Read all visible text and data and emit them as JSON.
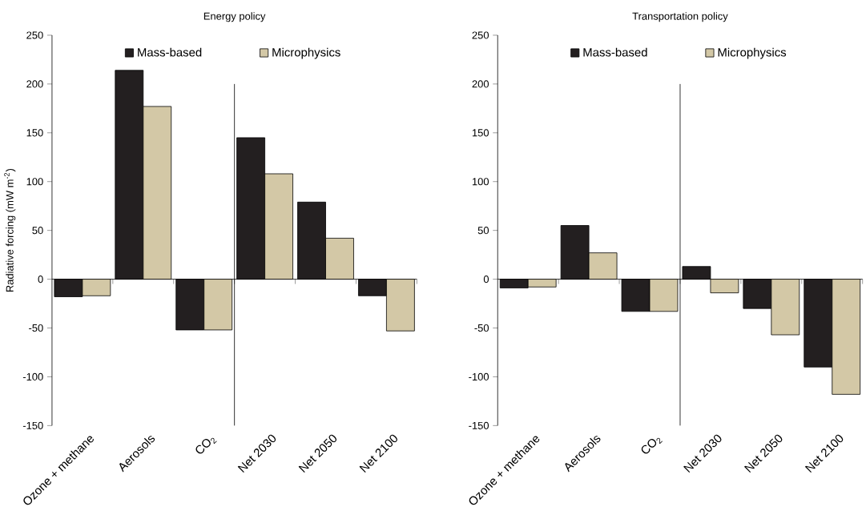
{
  "chart_data": [
    {
      "type": "bar",
      "title": "Energy policy",
      "ylabel": "Radiative forcing (mW m$^{-2}$)",
      "categories": [
        "Ozone + methane",
        "Aerosols",
        "CO$_{2}$",
        "Net 2030",
        "Net 2050",
        "Net 2100"
      ],
      "series": [
        {
          "name": "Mass-based",
          "color": "#231f20",
          "values": [
            -18,
            214,
            -52,
            145,
            79,
            -17
          ]
        },
        {
          "name": "Microphysics",
          "color": "#d3c8a6",
          "values": [
            -17,
            177,
            -52,
            108,
            42,
            -53
          ]
        }
      ],
      "ylim": [
        -150,
        250
      ],
      "yticks": [
        -150,
        -100,
        -50,
        0,
        50,
        100,
        150,
        200,
        250
      ],
      "legend": "top"
    },
    {
      "type": "bar",
      "title": "Transportation policy",
      "categories": [
        "Ozone + methane",
        "Aerosols",
        "CO$_{2}$",
        "Net 2030",
        "Net 2050",
        "Net 2100"
      ],
      "series": [
        {
          "name": "Mass-based",
          "color": "#231f20",
          "values": [
            -9,
            55,
            -33,
            13,
            -30,
            -90
          ]
        },
        {
          "name": "Microphysics",
          "color": "#d3c8a6",
          "values": [
            -8,
            27,
            -33,
            -14,
            -57,
            -118
          ]
        }
      ],
      "ylim": [
        -150,
        250
      ],
      "yticks": [
        -150,
        -100,
        -50,
        0,
        50,
        100,
        150,
        200,
        250
      ],
      "legend": "top"
    }
  ]
}
